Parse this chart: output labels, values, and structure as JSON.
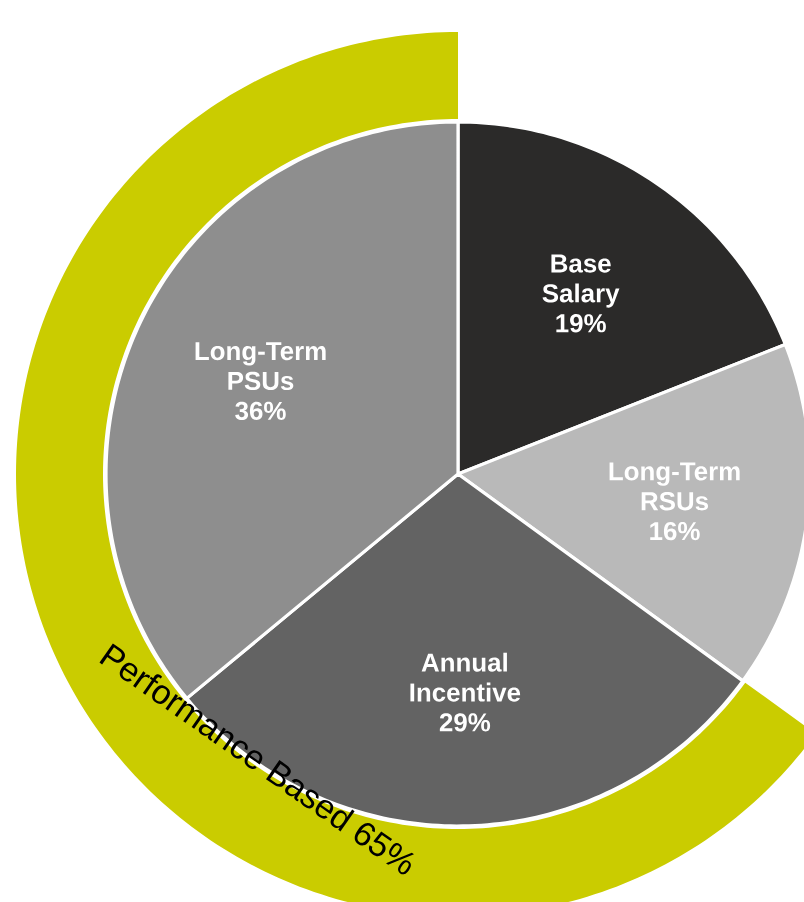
{
  "chart_data": {
    "type": "pie",
    "categories": [
      "Base Salary",
      "Long-Term RSUs",
      "Annual Incentive",
      "Long-Term PSUs"
    ],
    "values": [
      19,
      16,
      29,
      36
    ],
    "value_labels": [
      "19%",
      "16%",
      "29%",
      "36%"
    ],
    "colors": [
      "#2b2a29",
      "#b9b9b9",
      "#636363",
      "#8e8e8e"
    ],
    "annotations": [
      "Performance Based 65%"
    ]
  }
}
